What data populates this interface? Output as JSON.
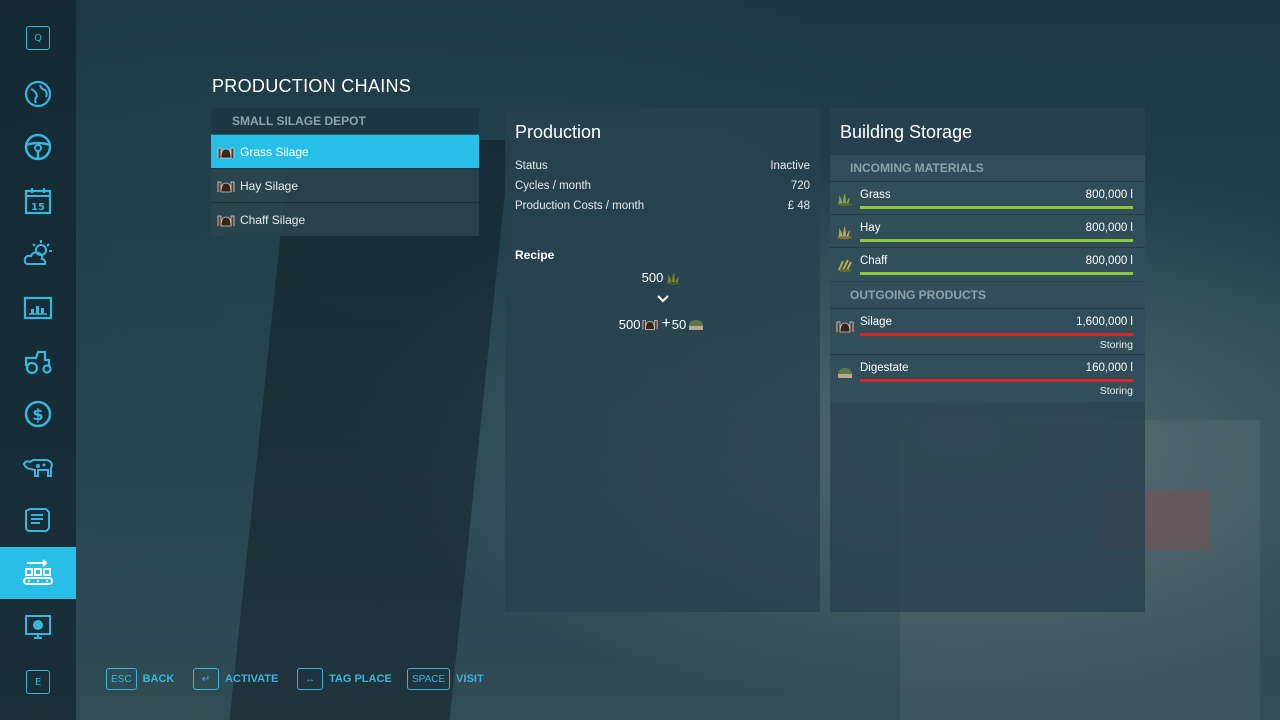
{
  "sidebar": {
    "top_key": "Q",
    "bottom_key": "E",
    "items": [
      {
        "icon": "globe-map-icon"
      },
      {
        "icon": "steering-wheel-icon"
      },
      {
        "icon": "calendar-icon",
        "text": "15"
      },
      {
        "icon": "weather-icon"
      },
      {
        "icon": "statistics-icon"
      },
      {
        "icon": "tractor-icon"
      },
      {
        "icon": "finances-icon"
      },
      {
        "icon": "animals-icon"
      },
      {
        "icon": "contracts-icon"
      },
      {
        "icon": "production-chains-icon",
        "active": true
      },
      {
        "icon": "help-icon"
      }
    ]
  },
  "page_title": "PRODUCTION CHAINS",
  "chain_list": {
    "header": "SMALL SILAGE DEPOT",
    "items": [
      {
        "label": "Grass Silage",
        "selected": true
      },
      {
        "label": "Hay Silage",
        "selected": false
      },
      {
        "label": "Chaff Silage",
        "selected": false
      }
    ]
  },
  "production": {
    "title": "Production",
    "stats": [
      {
        "label": "Status",
        "value": "Inactive"
      },
      {
        "label": "Cycles / month",
        "value": "720"
      },
      {
        "label": "Production Costs / month",
        "value": "£ 48"
      }
    ],
    "recipe_label": "Recipe",
    "input_amount": "500",
    "output_amount_1": "500",
    "plus": "+",
    "output_amount_2": "50"
  },
  "storage": {
    "title": "Building Storage",
    "incoming_header": "INCOMING MATERIALS",
    "incoming": [
      {
        "name": "Grass",
        "amount": "800,000 l",
        "fill": 1.0
      },
      {
        "name": "Hay",
        "amount": "800,000 l",
        "fill": 1.0
      },
      {
        "name": "Chaff",
        "amount": "800,000 l",
        "fill": 1.0
      }
    ],
    "outgoing_header": "OUTGOING PRODUCTS",
    "outgoing": [
      {
        "name": "Silage",
        "amount": "1,600,000 l",
        "status": "Storing",
        "fill": 1.0
      },
      {
        "name": "Digestate",
        "amount": "160,000 l",
        "status": "Storing",
        "fill": 1.0
      }
    ]
  },
  "hints": [
    {
      "key": "ESC",
      "label": "BACK"
    },
    {
      "key": "↵",
      "label": "ACTIVATE"
    },
    {
      "key": "↔",
      "label": "TAG PLACE"
    },
    {
      "key": "SPACE",
      "label": "VISIT"
    }
  ],
  "colors": {
    "accent": "#27bfe8",
    "incoming_bar": "#8fc63f",
    "outgoing_bar": "#d62a2a"
  }
}
